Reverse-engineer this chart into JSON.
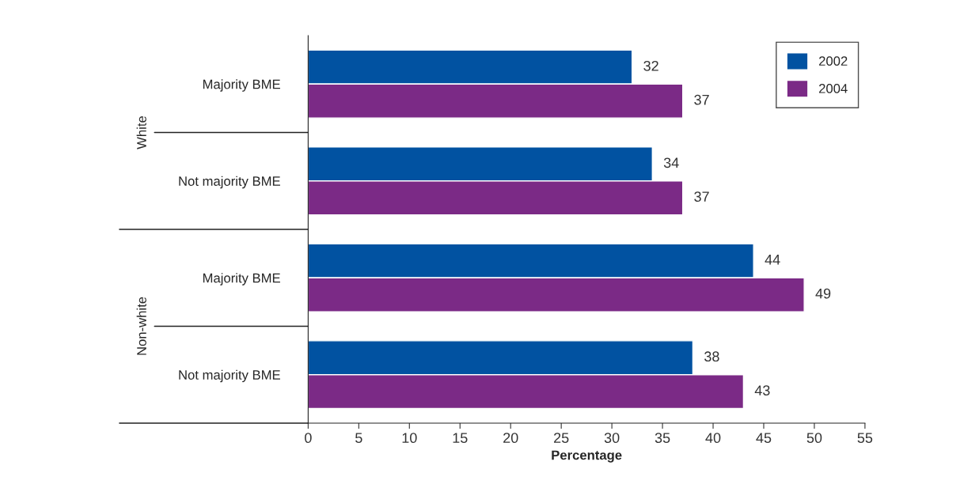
{
  "chart_data": {
    "type": "bar",
    "orientation": "horizontal",
    "categories": [
      "Majority BME",
      "Not majority BME",
      "Majority BME",
      "Not majority BME"
    ],
    "series": [
      {
        "name": "2002",
        "color": "#0152a1",
        "values": [
          32,
          34,
          44,
          38
        ]
      },
      {
        "name": "2004",
        "color": "#7b2a86",
        "values": [
          37,
          37,
          49,
          43
        ]
      }
    ],
    "xlabel": "Percentage",
    "xlim": [
      0,
      55
    ],
    "xticks": [
      0,
      5,
      10,
      15,
      20,
      25,
      30,
      35,
      40,
      45,
      50,
      55
    ],
    "annotations": [
      "White",
      "Non-white"
    ],
    "data_labels": true,
    "legend": "top right",
    "grid": false
  }
}
